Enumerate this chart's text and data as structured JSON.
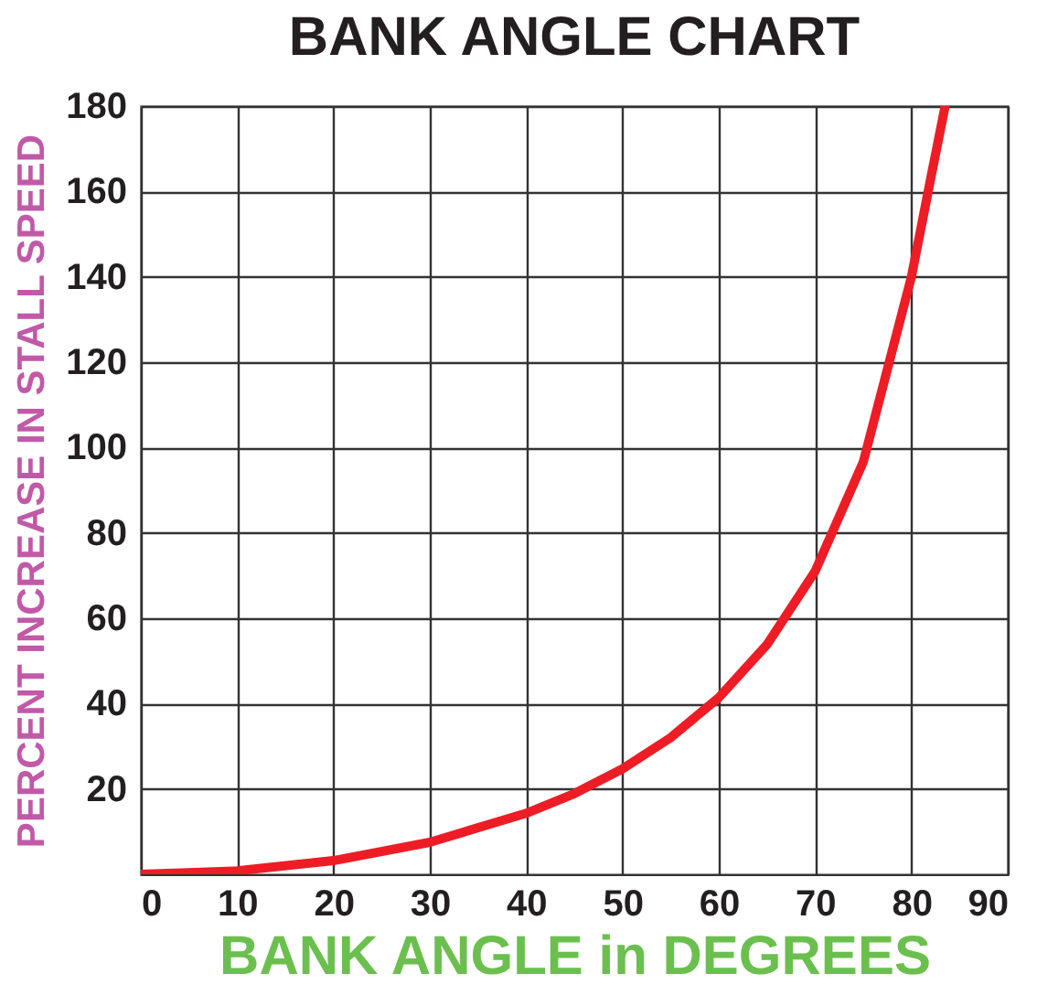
{
  "chart_data": {
    "type": "line",
    "title": "BANK ANGLE CHART",
    "xlabel": "BANK ANGLE in DEGREES",
    "ylabel": "PERCENT INCREASE IN STALL SPEED",
    "x": [
      0,
      10,
      20,
      30,
      40,
      45,
      50,
      55,
      60,
      65,
      70,
      75,
      80,
      82,
      83.5
    ],
    "series": [
      {
        "color": "#ee1c25",
        "values": [
          0,
          0.8,
          3.2,
          7.5,
          14.3,
          18.9,
          24.7,
          32,
          41.4,
          53.8,
          71,
          96.6,
          140,
          163,
          180
        ]
      }
    ],
    "xlim": [
      0,
      90
    ],
    "xticks": [
      0,
      10,
      20,
      30,
      40,
      50,
      60,
      70,
      80,
      90
    ],
    "ylim": [
      0,
      180
    ],
    "yticks": [
      20,
      40,
      60,
      80,
      100,
      120,
      140,
      160,
      180
    ],
    "grid": true,
    "marker": "none",
    "line_style": "solid",
    "legend": false
  }
}
